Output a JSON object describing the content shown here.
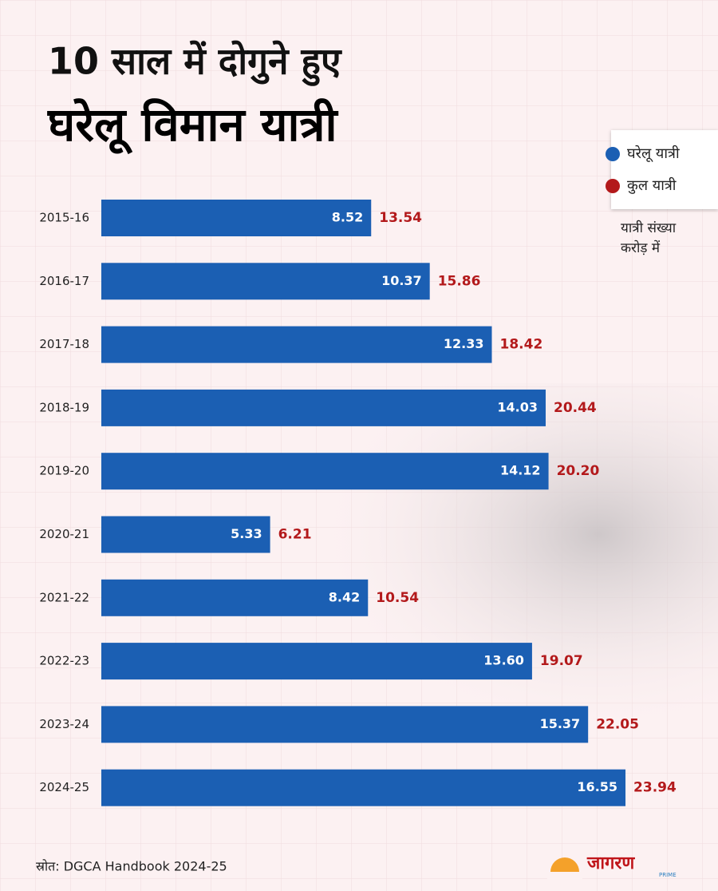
{
  "chart_data": {
    "type": "bar",
    "orientation": "horizontal",
    "title": "10 साल में दोगुने हुए",
    "subtitle": "घरेलू विमान यात्री",
    "categories": [
      "2015-16",
      "2016-17",
      "2017-18",
      "2018-19",
      "2019-20",
      "2020-21",
      "2021-22",
      "2022-23",
      "2023-24",
      "2024-25"
    ],
    "series": [
      {
        "name": "घरेलू यात्री",
        "color": "#1b5fb3",
        "values": [
          8.52,
          10.37,
          12.33,
          14.03,
          14.12,
          5.33,
          8.42,
          13.6,
          15.37,
          16.55
        ],
        "value_labels": [
          "8.52",
          "10.37",
          "12.33",
          "14.03",
          "14.12",
          "5.33",
          "8.42",
          "13.60",
          "15.37",
          "16.55"
        ]
      },
      {
        "name": "कुल यात्री",
        "color": "#b3191b",
        "values": [
          13.54,
          15.86,
          18.42,
          20.44,
          20.2,
          6.21,
          10.54,
          19.07,
          22.05,
          23.94
        ],
        "value_labels": [
          "13.54",
          "15.86",
          "18.42",
          "20.44",
          "20.20",
          "6.21",
          "10.54",
          "19.07",
          "22.05",
          "23.94"
        ]
      }
    ],
    "note": [
      "यात्री संख्या",
      "करोड़ में"
    ],
    "source": "स्रोत: DGCA Handbook 2024-25",
    "logo": "जागरण",
    "logo_sub": "PRIME"
  }
}
